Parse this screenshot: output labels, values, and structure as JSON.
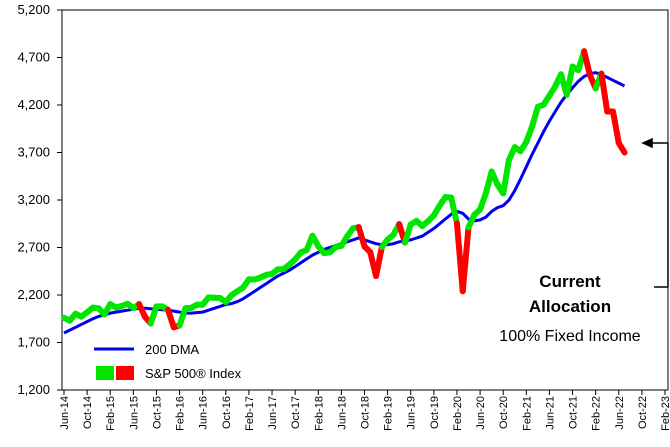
{
  "chart_data": {
    "type": "line",
    "categories": [
      "Jun-14",
      null,
      null,
      null,
      "Oct-14",
      null,
      null,
      null,
      "Feb-15",
      null,
      null,
      null,
      "Jun-15",
      null,
      null,
      null,
      "Oct-15",
      null,
      null,
      null,
      "Feb-16",
      null,
      null,
      null,
      "Jun-16",
      null,
      null,
      null,
      "Oct-16",
      null,
      null,
      null,
      "Feb-17",
      null,
      null,
      null,
      "Jun-17",
      null,
      null,
      null,
      "Oct-17",
      null,
      null,
      null,
      "Feb-18",
      null,
      null,
      null,
      "Jun-18",
      null,
      null,
      null,
      "Oct-18",
      null,
      null,
      null,
      "Feb-19",
      null,
      null,
      null,
      "Jun-19",
      null,
      null,
      null,
      "Oct-19",
      null,
      null,
      null,
      "Feb-20",
      null,
      null,
      null,
      "Jun-20",
      null,
      null,
      null,
      "Oct-20",
      null,
      null,
      null,
      "Feb-21",
      null,
      null,
      null,
      "Jun-21",
      null,
      null,
      null,
      "Oct-21",
      null,
      null,
      null,
      "Feb-22",
      null,
      null,
      null,
      "Jun-22",
      null,
      null,
      null,
      "Oct-22",
      null,
      null,
      null,
      "Feb-23"
    ],
    "series": [
      {
        "name": "200 DMA",
        "color": "#0000ee",
        "values": [
          1800,
          1830,
          1860,
          1890,
          1920,
          1950,
          1975,
          1990,
          2010,
          2020,
          2030,
          2040,
          2050,
          2060,
          2060,
          2055,
          2050,
          2045,
          2040,
          2030,
          2020,
          2010,
          2010,
          2015,
          2020,
          2040,
          2060,
          2080,
          2100,
          2110,
          2130,
          2160,
          2200,
          2240,
          2280,
          2320,
          2360,
          2400,
          2430,
          2460,
          2500,
          2540,
          2580,
          2620,
          2650,
          2680,
          2700,
          2720,
          2740,
          2760,
          2780,
          2800,
          2780,
          2760,
          2740,
          2730,
          2730,
          2740,
          2760,
          2770,
          2780,
          2800,
          2820,
          2860,
          2900,
          2950,
          3000,
          3050,
          3080,
          3060,
          3000,
          2980,
          2990,
          3020,
          3080,
          3120,
          3140,
          3200,
          3300,
          3420,
          3550,
          3680,
          3800,
          3920,
          4030,
          4130,
          4230,
          4310,
          4380,
          4450,
          4500,
          4530,
          4540,
          4520,
          4490,
          4460,
          4430,
          4400,
          null,
          null,
          null,
          null,
          null,
          null,
          null
        ]
      },
      {
        "name": "S&P 500® Index",
        "colors": [
          "#00e600",
          "#ff0000"
        ],
        "values": [
          1960,
          1930,
          2003,
          1972,
          2018,
          2067,
          2059,
          1995,
          2104,
          2068,
          2086,
          2107,
          2063,
          2104,
          1972,
          1900,
          2079,
          2080,
          2044,
          1860,
          1880,
          2060,
          2065,
          2097,
          2099,
          2174,
          2171,
          2168,
          2126,
          2199,
          2239,
          2279,
          2364,
          2363,
          2384,
          2412,
          2423,
          2470,
          2472,
          2519,
          2575,
          2648,
          2674,
          2824,
          2714,
          2641,
          2648,
          2705,
          2718,
          2816,
          2902,
          2914,
          2712,
          2650,
          2400,
          2704,
          2784,
          2834,
          2946,
          2752,
          2942,
          2980,
          2926,
          2977,
          3038,
          3141,
          3231,
          3226,
          2954,
          2240,
          2912,
          3044,
          3100,
          3271,
          3500,
          3363,
          3270,
          3622,
          3756,
          3714,
          3811,
          3973,
          4181,
          4204,
          4298,
          4395,
          4523,
          4308,
          4605,
          4567,
          4766,
          4516,
          4374,
          4530,
          4132,
          4132,
          3800,
          3700,
          null,
          null,
          null,
          null,
          null,
          null,
          null
        ],
        "point_color_index": [
          0,
          0,
          0,
          0,
          0,
          0,
          0,
          0,
          0,
          0,
          0,
          0,
          0,
          0,
          1,
          1,
          0,
          0,
          0,
          1,
          1,
          0,
          0,
          0,
          0,
          0,
          0,
          0,
          0,
          0,
          0,
          0,
          0,
          0,
          0,
          0,
          0,
          0,
          0,
          0,
          0,
          0,
          0,
          0,
          0,
          0,
          0,
          0,
          0,
          0,
          0,
          0,
          1,
          1,
          1,
          1,
          0,
          0,
          0,
          1,
          0,
          0,
          0,
          0,
          0,
          0,
          0,
          0,
          0,
          1,
          1,
          0,
          0,
          0,
          0,
          0,
          0,
          0,
          0,
          0,
          0,
          0,
          0,
          0,
          0,
          0,
          0,
          0,
          0,
          0,
          0,
          1,
          1,
          0,
          1,
          1,
          1,
          1,
          0,
          0,
          0,
          0,
          0,
          0,
          0
        ]
      }
    ],
    "ylim": [
      1200,
      5200
    ],
    "yticks": [
      {
        "value": 1200,
        "label": "1,200"
      },
      {
        "value": 1700,
        "label": "1,700"
      },
      {
        "value": 2200,
        "label": "2,200"
      },
      {
        "value": 2700,
        "label": "2,700"
      },
      {
        "value": 3200,
        "label": "3,200"
      },
      {
        "value": 3700,
        "label": "3,700"
      },
      {
        "value": 4200,
        "label": "4,200"
      },
      {
        "value": 4700,
        "label": "4,700"
      },
      {
        "value": 5200,
        "label": "5,200"
      }
    ],
    "annotations": [
      "Current",
      "Allocation",
      "100% Fixed Income"
    ]
  }
}
